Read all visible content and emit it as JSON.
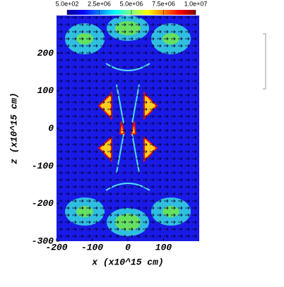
{
  "chart_data": {
    "type": "heatmap",
    "xlabel": "x (x10^15 cm)",
    "ylabel": "z (x10^15 cm)",
    "xlim": [
      -200,
      200
    ],
    "xticks": [
      -200,
      -100,
      0,
      100
    ],
    "ylim": [
      -300,
      300
    ],
    "yticks": [
      -300,
      -200,
      -100,
      0,
      100,
      200
    ],
    "colorbar": {
      "colormap": "jet",
      "lim": [
        500,
        10000000
      ],
      "ticks": [
        {
          "value": 500,
          "label": "5.0e+02"
        },
        {
          "value": 2500000,
          "label": "2.5e+06"
        },
        {
          "value": 5000000,
          "label": "5.0e+06"
        },
        {
          "value": 7500000,
          "label": "7.5e+06"
        },
        {
          "value": 10000000,
          "label": "1.0e+07"
        }
      ]
    }
  }
}
